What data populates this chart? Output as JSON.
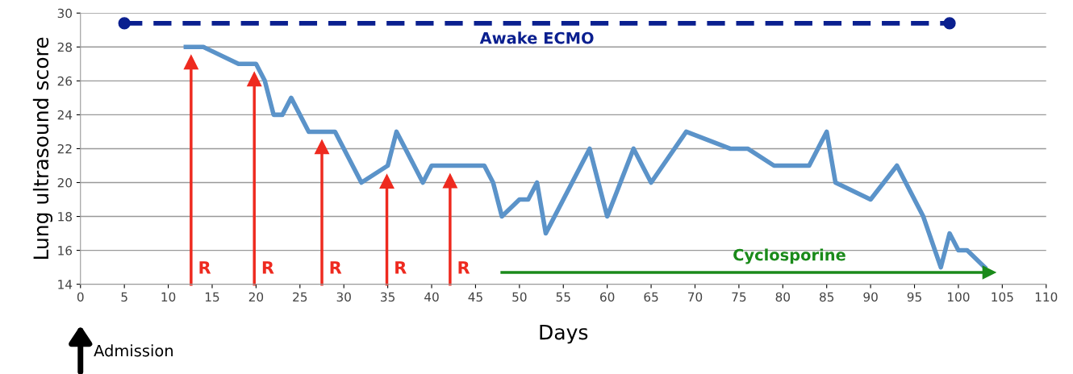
{
  "chart_data": {
    "type": "line",
    "xlabel": "Days",
    "ylabel": "Lung ultrasound score",
    "xlim": [
      0,
      110
    ],
    "xticks": [
      0,
      5,
      10,
      15,
      20,
      25,
      30,
      35,
      40,
      45,
      50,
      55,
      60,
      65,
      70,
      75,
      80,
      85,
      90,
      95,
      100,
      105,
      110
    ],
    "ylim": [
      14,
      30
    ],
    "yticks": [
      14,
      16,
      18,
      20,
      22,
      24,
      26,
      28,
      30
    ],
    "grid": "y",
    "legend": false,
    "series": [
      {
        "color": "#5b93c9",
        "x": [
          12,
          14,
          18,
          20,
          21,
          22,
          23,
          24,
          26,
          29,
          32,
          35,
          36,
          39,
          40,
          46,
          47,
          48,
          50,
          51,
          52,
          53,
          58,
          60,
          63,
          65,
          69,
          74,
          76,
          79,
          83,
          85,
          86,
          90,
          93,
          96,
          98,
          99,
          100,
          101,
          103
        ],
        "values": [
          28,
          28,
          27,
          27,
          26,
          24,
          24,
          25,
          23,
          23,
          20,
          21,
          23,
          20,
          21,
          21,
          20,
          18,
          19,
          19,
          20,
          17,
          22,
          18,
          22,
          20,
          23,
          22,
          22,
          21,
          21,
          23,
          20,
          19,
          21,
          18,
          15,
          17,
          16,
          16,
          15
        ]
      },
      {
        "name": "Awake ECMO",
        "color": "#0a1f8f",
        "x": [
          5,
          99
        ],
        "values": [
          29.4,
          29.4
        ],
        "marker": "circle",
        "line_style": "dashed"
      },
      {
        "name": "Cyclosporine",
        "color": "#1a8a1a",
        "x": [
          48,
          103.5
        ],
        "values": [
          14.7,
          14.7
        ]
      }
    ],
    "annotations": [
      "Admission"
    ],
    "ref_lines": [
      {
        "axis": "x",
        "value": 12.6,
        "label": "R",
        "color": "#ee2a1f"
      },
      {
        "axis": "x",
        "value": 19.8,
        "label": "R",
        "color": "#ee2a1f"
      },
      {
        "axis": "x",
        "value": 27.5,
        "label": "R",
        "color": "#ee2a1f"
      },
      {
        "axis": "x",
        "value": 34.9,
        "label": "R",
        "color": "#ee2a1f"
      },
      {
        "axis": "x",
        "value": 42.1,
        "label": "R",
        "color": "#ee2a1f"
      }
    ]
  }
}
